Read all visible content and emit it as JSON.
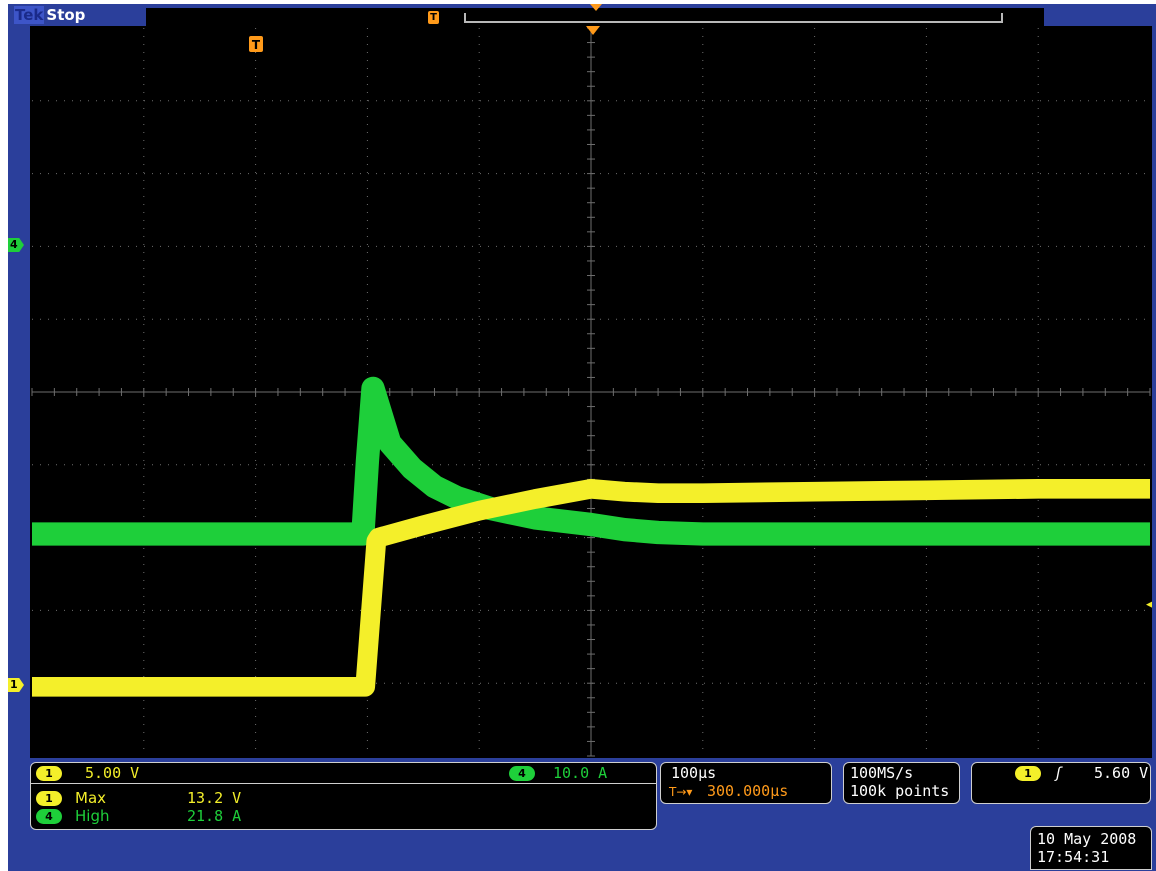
{
  "header": {
    "brand": "Tek",
    "status": "Stop"
  },
  "markers": {
    "trigger_glyph": "T",
    "ch1_marker": "1",
    "ch4_marker": "4",
    "trigger_level_glyph": "◂"
  },
  "channels": {
    "ch1": {
      "number": "1",
      "scale": "5.00 V",
      "color": "#f4ef2a"
    },
    "ch4": {
      "number": "4",
      "scale": "10.0 A",
      "color": "#1ecf3a"
    }
  },
  "measurements": [
    {
      "channel": "1",
      "name": "Max",
      "value": "13.2 V"
    },
    {
      "channel": "4",
      "name": "High",
      "value": "21.8 A"
    }
  ],
  "horizontal": {
    "time_per_div": "100µs",
    "trigger_pos_icon": "T→▾",
    "delay": "300.000µs"
  },
  "acquisition": {
    "sample_rate": "100MS/s",
    "record_length": "100k points"
  },
  "trigger": {
    "source": "1",
    "slope_icon": "rising-edge-icon",
    "slope_glyph": "ʃ",
    "level": "5.60 V"
  },
  "datetime": {
    "date": "10 May 2008",
    "time": "17:54:31"
  },
  "colors": {
    "background": "#2b3f9b",
    "screen": "#000000",
    "grid": "#6e6e6e",
    "trigger_marker": "#ff9a1a"
  },
  "chart_data": [
    {
      "type": "line",
      "title": "",
      "grid": true,
      "x_divisions": 10,
      "y_divisions": 10,
      "time_per_div_us": 100,
      "x_range_us": [
        -300,
        700
      ],
      "series": [
        {
          "name": "4",
          "color": "#1ecf3a",
          "unit": "A",
          "volts_per_div": 10.0,
          "trace_width_div": 0.32,
          "x_us": [
            -300,
            -4,
            0,
            5,
            20,
            40,
            60,
            80,
            110,
            150,
            200,
            230,
            260,
            300,
            400,
            500,
            600,
            700
          ],
          "y_div": [
            0,
            0,
            1.0,
            2.0,
            1.25,
            0.9,
            0.65,
            0.5,
            0.35,
            0.22,
            0.13,
            0.06,
            0.02,
            0.0,
            0.0,
            0.0,
            0.0,
            0.0
          ]
        },
        {
          "name": "1",
          "color": "#f4ef2a",
          "unit": "V",
          "volts_per_div": 5.0,
          "trace_width_div": 0.27,
          "x_us": [
            -300,
            -2,
            8,
            10,
            50,
            100,
            150,
            200,
            230,
            260,
            300,
            400,
            500,
            600,
            700
          ],
          "y_div": [
            0,
            0,
            2.0,
            2.05,
            2.22,
            2.42,
            2.58,
            2.72,
            2.68,
            2.66,
            2.66,
            2.68,
            2.7,
            2.72,
            2.72
          ]
        }
      ]
    }
  ]
}
